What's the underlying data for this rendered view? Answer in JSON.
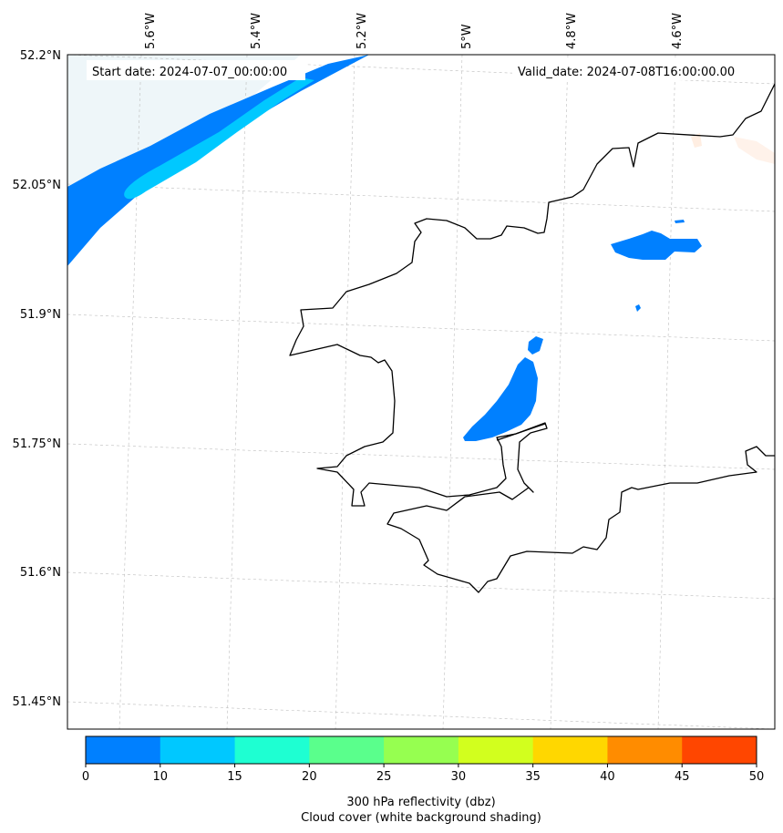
{
  "map": {
    "start_date": "Start date: 2024-07-07_00:00:00",
    "valid_date": "Valid_date: 2024-07-08T16:00:00.00",
    "longitude_labels": [
      "5.6°W",
      "5.4°W",
      "5.2°W",
      "5°W",
      "4.8°W",
      "4.6°W"
    ],
    "latitude_labels": [
      "52.2°N",
      "52.05°N",
      "51.9°N",
      "51.75°N",
      "51.6°N",
      "51.45°N"
    ]
  },
  "legend": {
    "title_line1": "300 hPa reflectivity (dbz)",
    "title_line2": "Cloud cover (white background shading)",
    "ticks": [
      "0",
      "10",
      "15",
      "20",
      "25",
      "30",
      "35",
      "40",
      "45",
      "50"
    ],
    "bins": [
      {
        "from": 0,
        "to": 10,
        "color": "#0080ff"
      },
      {
        "from": 10,
        "to": 15,
        "color": "#00c8ff"
      },
      {
        "from": 15,
        "to": 20,
        "color": "#1effd2"
      },
      {
        "from": 20,
        "to": 25,
        "color": "#5aff8c"
      },
      {
        "from": 25,
        "to": 30,
        "color": "#96ff50"
      },
      {
        "from": 30,
        "to": 35,
        "color": "#d2ff1e"
      },
      {
        "from": 35,
        "to": 40,
        "color": "#ffd700"
      },
      {
        "from": 40,
        "to": 45,
        "color": "#ff8c00"
      },
      {
        "from": 45,
        "to": 50,
        "color": "#ff4600"
      }
    ]
  }
}
